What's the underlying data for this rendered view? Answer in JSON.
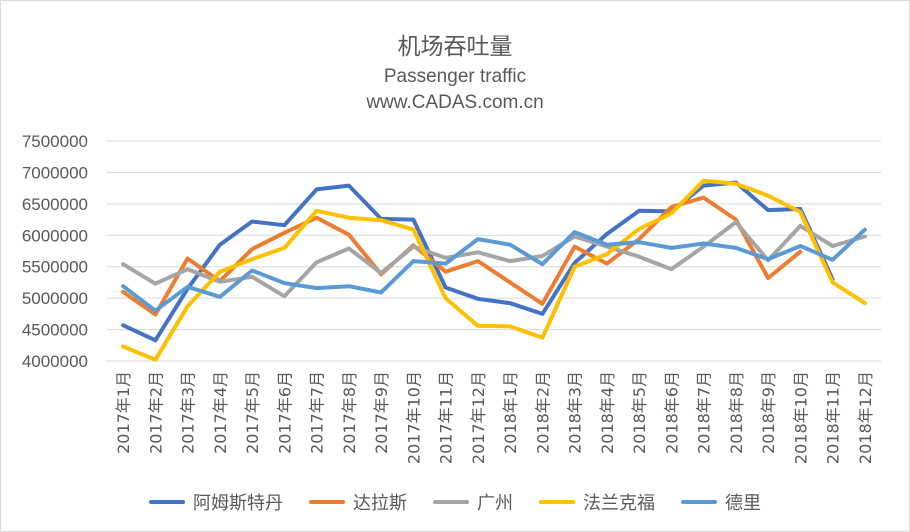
{
  "chart_data": {
    "type": "line",
    "title": "机场吞吐量",
    "subtitle_lines": [
      "Passenger traffic",
      "www.CADAS.com.cn"
    ],
    "ylim": [
      4000000,
      7500000
    ],
    "yticks": [
      4000000,
      4500000,
      5000000,
      5500000,
      6000000,
      6500000,
      7000000,
      7500000
    ],
    "grid": true,
    "legend_position": "bottom",
    "categories": [
      "2017年1月",
      "2017年2月",
      "2017年3月",
      "2017年4月",
      "2017年5月",
      "2017年6月",
      "2017年7月",
      "2017年8月",
      "2017年9月",
      "2017年10月",
      "2017年11月",
      "2017年12月",
      "2018年1月",
      "2018年2月",
      "2018年3月",
      "2018年4月",
      "2018年5月",
      "2018年6月",
      "2018年7月",
      "2018年8月",
      "2018年9月",
      "2018年10月",
      "2018年11月",
      "2018年12月"
    ],
    "series": [
      {
        "name": "阿姆斯特丹",
        "color": "#4472c4",
        "values": [
          4570000,
          4330000,
          5150000,
          5850000,
          6220000,
          6160000,
          6730000,
          6790000,
          6260000,
          6250000,
          5170000,
          4990000,
          4920000,
          4750000,
          5560000,
          6020000,
          6390000,
          6380000,
          6790000,
          6840000,
          6400000,
          6420000,
          5300000,
          null
        ]
      },
      {
        "name": "达拉斯",
        "color": "#ed7d31",
        "values": [
          5100000,
          4740000,
          5630000,
          5270000,
          5780000,
          6040000,
          6280000,
          6010000,
          5380000,
          5840000,
          5420000,
          5590000,
          5250000,
          4910000,
          5820000,
          5550000,
          5940000,
          6450000,
          6600000,
          6250000,
          5320000,
          5740000,
          null,
          null
        ]
      },
      {
        "name": "广州",
        "color": "#a5a5a5",
        "values": [
          5540000,
          5230000,
          5460000,
          5260000,
          5340000,
          5030000,
          5570000,
          5790000,
          5400000,
          5820000,
          5640000,
          5730000,
          5590000,
          5670000,
          5980000,
          5820000,
          5660000,
          5460000,
          5820000,
          6210000,
          5600000,
          6150000,
          5830000,
          5980000
        ]
      },
      {
        "name": "法兰克福",
        "color": "#ffc000",
        "values": [
          4230000,
          4020000,
          4870000,
          5420000,
          5620000,
          5800000,
          6390000,
          6280000,
          6240000,
          6090000,
          5000000,
          4560000,
          4550000,
          4370000,
          5500000,
          5700000,
          6100000,
          6350000,
          6870000,
          6820000,
          6630000,
          6370000,
          5250000,
          4920000
        ]
      },
      {
        "name": "德里",
        "color": "#5b9bd5",
        "values": [
          5190000,
          4800000,
          5180000,
          5020000,
          5440000,
          5240000,
          5160000,
          5190000,
          5090000,
          5590000,
          5550000,
          5940000,
          5850000,
          5540000,
          6050000,
          5850000,
          5890000,
          5800000,
          5870000,
          5800000,
          5620000,
          5830000,
          5610000,
          6090000
        ]
      }
    ]
  }
}
